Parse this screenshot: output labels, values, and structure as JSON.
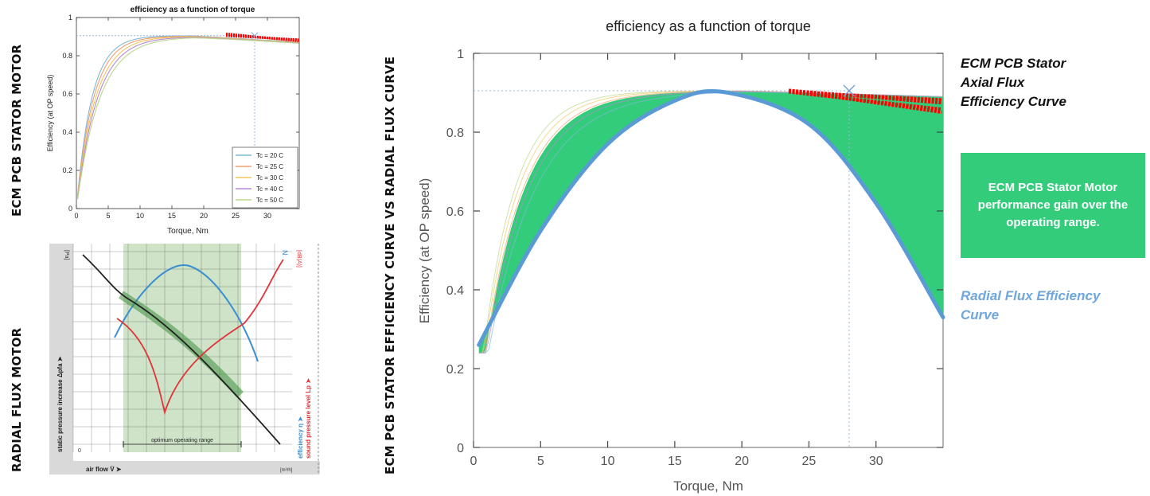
{
  "labels": {
    "top_left_vertical": "ECM PCB STATOR MOTOR",
    "bottom_left_vertical": "RADIAL FLUX MOTOR",
    "middle_vertical": "ECM PCB STATOR EFFICIENCY CURVE VS RADIAL FLUX CURVE",
    "axial_caption": "ECM PCB Stator Axial Flux Efficiency Curve",
    "gain_box": "ECM PCB Stator Motor performance gain over the operating range.",
    "radial_caption": "Radial Flux Efficiency Curve"
  },
  "colors": {
    "green_fill": "#33cc7a",
    "radial_blue": "#5b9bd5",
    "caption_blue": "#6fa6dc",
    "operating_points": "#ff0000"
  },
  "chart_data": [
    {
      "type": "line",
      "title": "efficiency as a function of torque",
      "xlabel": "Torque, Nm",
      "ylabel": "Efficiency (at OP speed)",
      "xlim": [
        0,
        35
      ],
      "ylim": [
        0,
        1
      ],
      "xticks": [
        "0",
        "5",
        "10",
        "15",
        "20",
        "25",
        "30"
      ],
      "yticks": [
        "0",
        "0.2",
        "0.4",
        "0.6",
        "0.8",
        "1"
      ],
      "legend_position": "bottom-right",
      "grid": false,
      "series": [
        {
          "name": "Tc = 20 C",
          "color": "#7fb8d8",
          "k": 0.42,
          "peak": 0.905
        },
        {
          "name": "Tc = 25 C",
          "color": "#f0a070",
          "k": 0.38,
          "peak": 0.903
        },
        {
          "name": "Tc = 30 C",
          "color": "#f2c75c",
          "k": 0.34,
          "peak": 0.902
        },
        {
          "name": "Tc = 40 C",
          "color": "#b58ad6",
          "k": 0.31,
          "peak": 0.9
        },
        {
          "name": "Tc = 50 C",
          "color": "#b8d88a",
          "k": 0.28,
          "peak": 0.899
        }
      ],
      "op_marker": {
        "x": 28,
        "y": 0.905
      },
      "op_points_range": [
        23.5,
        35
      ],
      "op_points_y": [
        0.905,
        0.87
      ]
    },
    {
      "type": "line",
      "xlabel": "air flow V̇ ➤",
      "ylabel": "static pressure increase Δpfa ➤",
      "right_labels": [
        "efficiency η ➤",
        "sound pressure level Lp ➤"
      ],
      "top_left_unit": "[Pa]",
      "top_right_unit_n": "N",
      "top_right_unit_db": "[dB(A)]",
      "bottom_right_unit": "[m³/h]",
      "origin": "0",
      "shaded_label": "optimum operating range",
      "series": [
        {
          "name": "pressure",
          "color": "#222222"
        },
        {
          "name": "efficiency",
          "color": "#3a8fd0"
        },
        {
          "name": "sound",
          "color": "#e0343a"
        }
      ]
    },
    {
      "type": "area",
      "title": "efficiency as a function of torque",
      "xlabel": "Torque, Nm",
      "ylabel": "Efficiency (at OP speed)",
      "xlim": [
        0,
        35
      ],
      "ylim": [
        0,
        1
      ],
      "xticks": [
        "0",
        "5",
        "10",
        "15",
        "20",
        "25",
        "30"
      ],
      "yticks": [
        "0",
        "0.2",
        "0.4",
        "0.6",
        "0.8",
        "1"
      ],
      "axial_peak": 0.905,
      "radial_curve": [
        {
          "x": 0.4,
          "y": 0.26
        },
        {
          "x": 5,
          "y": 0.55
        },
        {
          "x": 10,
          "y": 0.77
        },
        {
          "x": 15,
          "y": 0.88
        },
        {
          "x": 19,
          "y": 0.9
        },
        {
          "x": 25,
          "y": 0.82
        },
        {
          "x": 30,
          "y": 0.62
        },
        {
          "x": 35,
          "y": 0.33
        }
      ],
      "op_marker": {
        "x": 28,
        "y": 0.905
      }
    }
  ]
}
